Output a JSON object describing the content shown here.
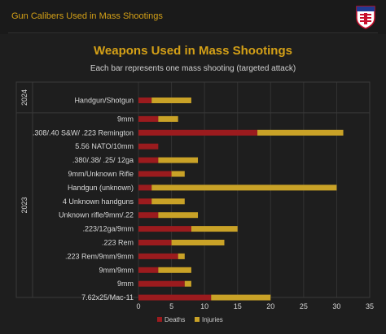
{
  "header": {
    "title": "Gun Calibers Used in Mass Shootings"
  },
  "colors": {
    "deaths": "#9b1b1e",
    "injuries": "#c9a227",
    "accent": "#d4a017",
    "grid": "#333333"
  },
  "chart_data": {
    "type": "bar",
    "orientation": "horizontal",
    "stacked": true,
    "title": "Weapons Used in Mass Shootings",
    "subtitle": "Each bar represents one mass shooting (targeted attack)",
    "xlabel": "",
    "ylabel": "",
    "xlim": [
      0,
      35
    ],
    "xticks": [
      0,
      5,
      10,
      15,
      20,
      25,
      30,
      35
    ],
    "grid": true,
    "legend_position": "bottom",
    "groups": [
      {
        "label": "2024",
        "start": 0,
        "end": 1
      },
      {
        "label": "2023",
        "start": 1,
        "end": 15
      }
    ],
    "categories": [
      "Handgun/Shotgun",
      "9mm",
      ".308/.40 S&W/ .223 Remington",
      "5.56 NATO/10mm",
      ".380/.38/ .25/ 12ga",
      "9mm/Unknown Rifle",
      "Handgun (unknown)",
      "4 Unknown handguns",
      "Unknown rifle/9mm/.22",
      ".223/12ga/9mm",
      ".223 Rem",
      ".223 Rem/9mm/9mm",
      "9mm/9mm",
      "9mm",
      "7.62x25/Mac-11"
    ],
    "series": [
      {
        "name": "Deaths",
        "values": [
          2,
          3,
          18,
          3,
          3,
          5,
          2,
          2,
          3,
          8,
          5,
          6,
          3,
          7,
          11
        ]
      },
      {
        "name": "Injuries",
        "values": [
          6,
          3,
          13,
          0,
          6,
          2,
          28,
          5,
          6,
          7,
          8,
          1,
          5,
          1,
          9
        ]
      }
    ]
  }
}
